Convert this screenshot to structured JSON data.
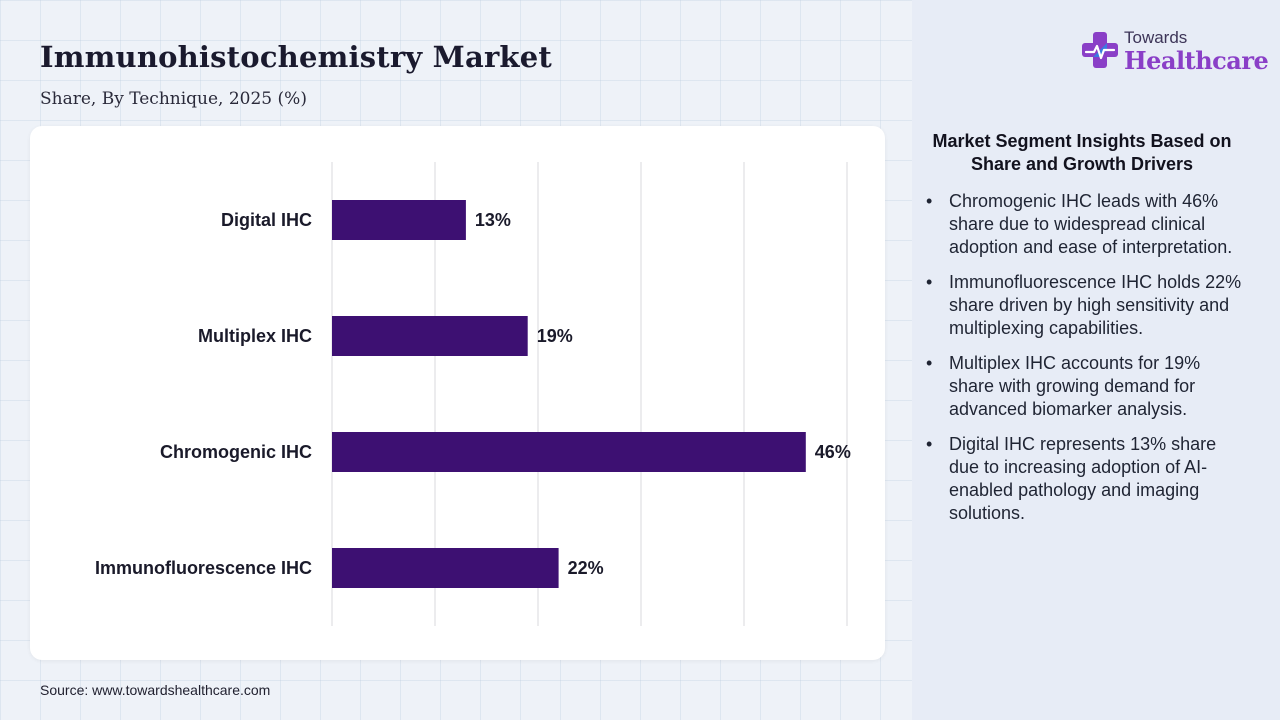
{
  "header": {
    "title": "Immunohistochemistry Market",
    "subtitle": "Share, By Technique, 2025 (%)"
  },
  "logo": {
    "line1": "Towards",
    "line2": "Healthcare"
  },
  "source": "Source: www.towardshealthcare.com",
  "insights": {
    "heading": "Market Segment Insights Based on Share and Growth Drivers",
    "bullet_glyph": "•",
    "items": [
      "Chromogenic IHC leads with 46% share due to widespread clinical adoption and ease of interpretation.",
      "Immunofluorescence IHC holds 22% share driven by high sensitivity and multiplexing capabilities.",
      "Multiplex IHC accounts for 19% share with growing demand for advanced biomarker analysis.",
      "Digital IHC represents 13% share due to increasing adoption of AI-enabled pathology and imaging solutions."
    ]
  },
  "colors": {
    "bar": "#3d1072",
    "gridline": "#d9d9de",
    "logo_purple": "#8a3fc7",
    "logo_blue": "#3a7be0"
  },
  "chart_data": {
    "type": "bar",
    "orientation": "horizontal",
    "categories": [
      "Digital IHC",
      "Multiplex IHC",
      "Chromogenic IHC",
      "Immunofluorescence IHC"
    ],
    "values": [
      13,
      19,
      46,
      22
    ],
    "value_labels": [
      "13%",
      "19%",
      "46%",
      "22%"
    ],
    "xlim": [
      0,
      50
    ],
    "grid": "vertical",
    "legend": "none",
    "data_labels": true
  }
}
